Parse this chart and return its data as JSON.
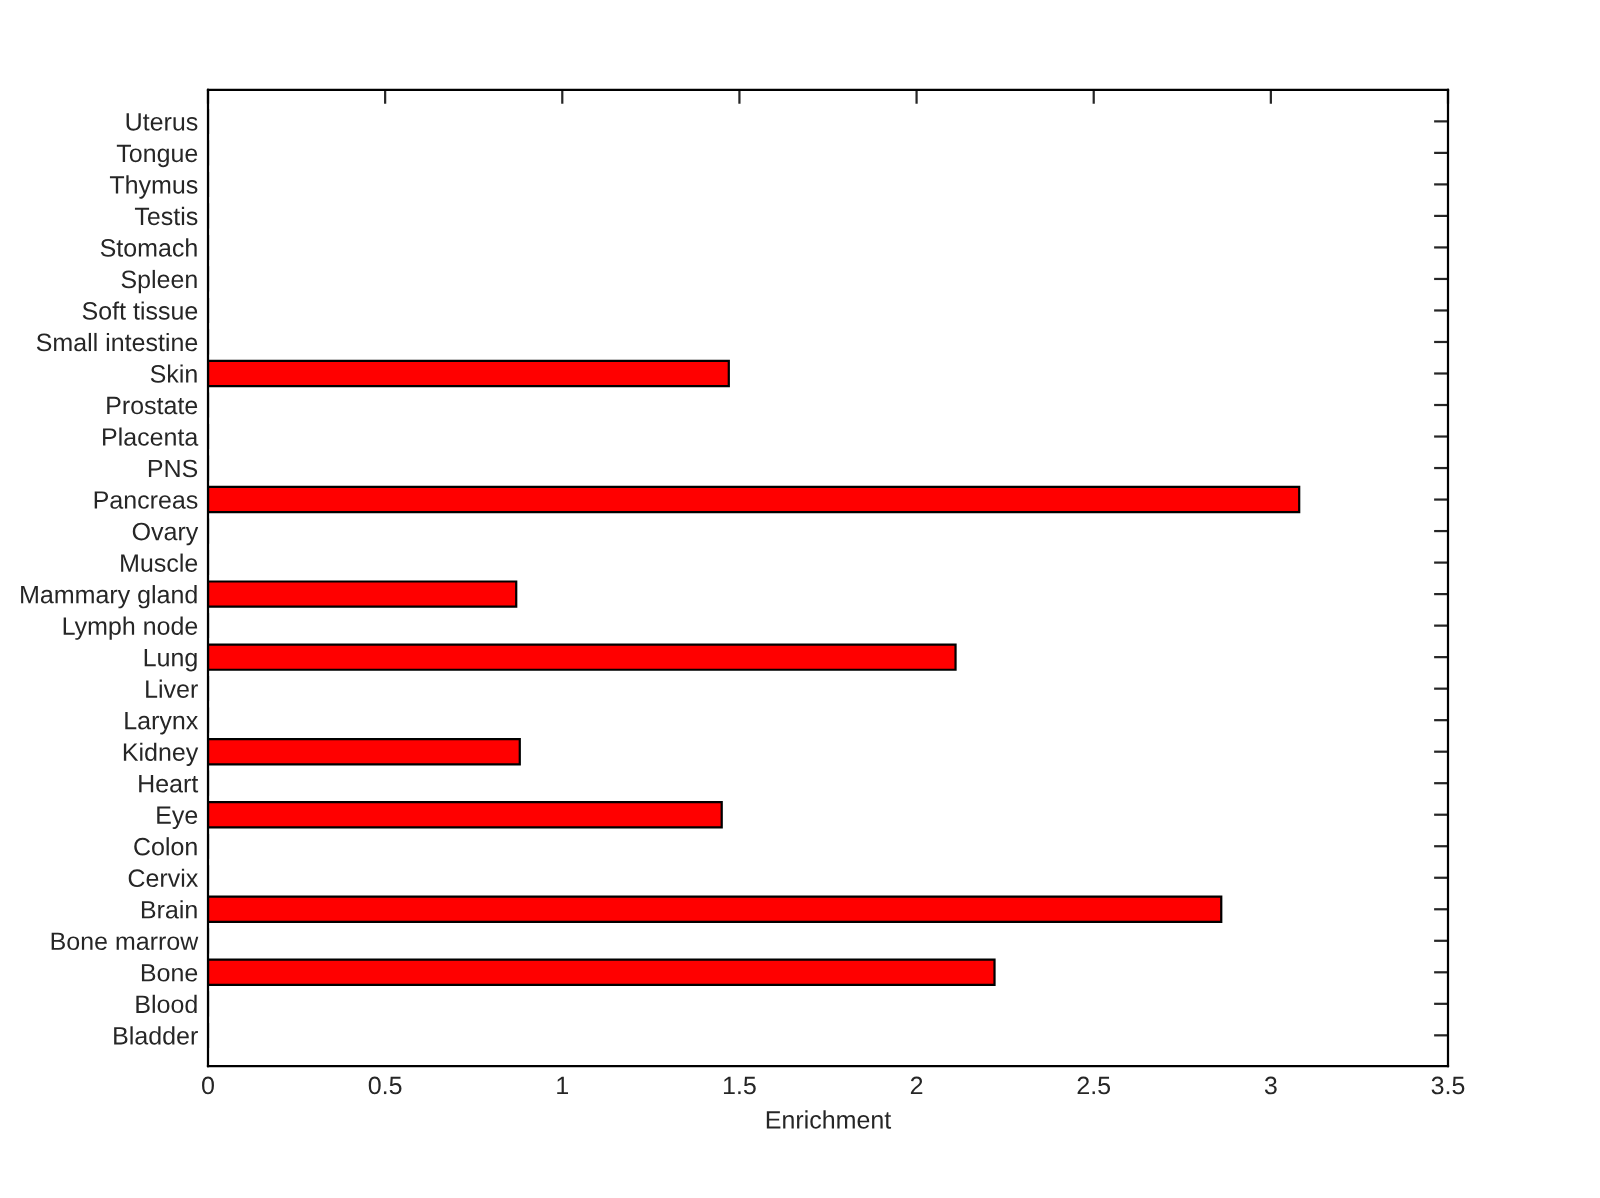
{
  "chart_data": {
    "type": "bar",
    "orientation": "horizontal",
    "xlabel": "Enrichment",
    "categories": [
      "Uterus",
      "Tongue",
      "Thymus",
      "Testis",
      "Stomach",
      "Spleen",
      "Soft tissue",
      "Small intestine",
      "Skin",
      "Prostate",
      "Placenta",
      "PNS",
      "Pancreas",
      "Ovary",
      "Muscle",
      "Mammary gland",
      "Lymph node",
      "Lung",
      "Liver",
      "Larynx",
      "Kidney",
      "Heart",
      "Eye",
      "Colon",
      "Cervix",
      "Brain",
      "Bone marrow",
      "Bone",
      "Blood",
      "Bladder"
    ],
    "values": [
      0,
      0,
      0,
      0,
      0,
      0,
      0,
      0,
      1.47,
      0,
      0,
      0,
      3.08,
      0,
      0,
      0.87,
      0,
      2.11,
      0,
      0,
      0.88,
      0,
      1.45,
      0,
      0,
      2.86,
      0,
      2.22,
      0,
      0
    ],
    "color": "#ff0000",
    "xlim": [
      0,
      3.5
    ],
    "xticks": [
      0,
      0.5,
      1,
      1.5,
      2,
      2.5,
      3,
      3.5
    ],
    "grid": false,
    "legend": false
  }
}
